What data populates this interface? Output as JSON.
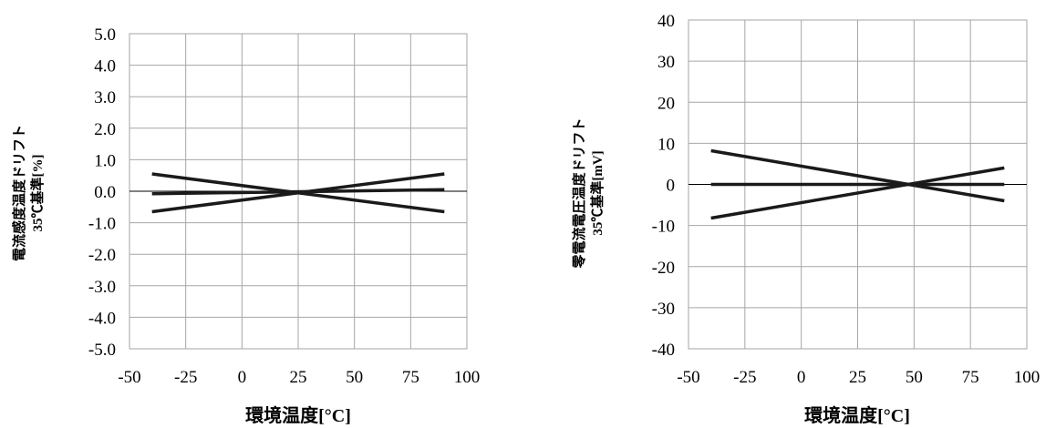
{
  "chart_data": [
    {
      "type": "line",
      "title": "",
      "xlabel": "環境温度[°C]",
      "ylabel_line1": "電流感度温度ドリフト",
      "ylabel_line2": "35℃基準[%]",
      "xlim": [
        -50,
        100
      ],
      "ylim": [
        -5.0,
        5.0
      ],
      "x_ticks": [
        "-50",
        "-25",
        "0",
        "25",
        "50",
        "75",
        "100"
      ],
      "y_ticks": [
        "5.0",
        "4.0",
        "3.0",
        "2.0",
        "1.0",
        "0.0",
        "-1.0",
        "-2.0",
        "-3.0",
        "-4.0",
        "-5.0"
      ],
      "grid": true,
      "series": [
        {
          "x": [
            -40,
            90
          ],
          "y": [
            0.55,
            -0.65
          ]
        },
        {
          "x": [
            -40,
            90
          ],
          "y": [
            -0.65,
            0.55
          ]
        },
        {
          "x": [
            -40,
            90
          ],
          "y": [
            -0.08,
            0.05
          ]
        }
      ]
    },
    {
      "type": "line",
      "title": "",
      "xlabel": "環境温度[°C]",
      "ylabel_line1": "零電流電圧温度ドリフト",
      "ylabel_line2": "35℃基準[mV]",
      "xlim": [
        -50,
        100
      ],
      "ylim": [
        -40,
        40
      ],
      "x_ticks": [
        "-50",
        "-25",
        "0",
        "25",
        "50",
        "75",
        "100"
      ],
      "y_ticks": [
        "40",
        "30",
        "20",
        "10",
        "0",
        "-10",
        "-20",
        "-30",
        "-40"
      ],
      "grid": true,
      "series": [
        {
          "x": [
            -40,
            90
          ],
          "y": [
            8.2,
            -4.0
          ]
        },
        {
          "x": [
            -40,
            90
          ],
          "y": [
            -8.2,
            4.0
          ]
        },
        {
          "x": [
            -40,
            90
          ],
          "y": [
            0,
            0
          ]
        }
      ]
    }
  ]
}
